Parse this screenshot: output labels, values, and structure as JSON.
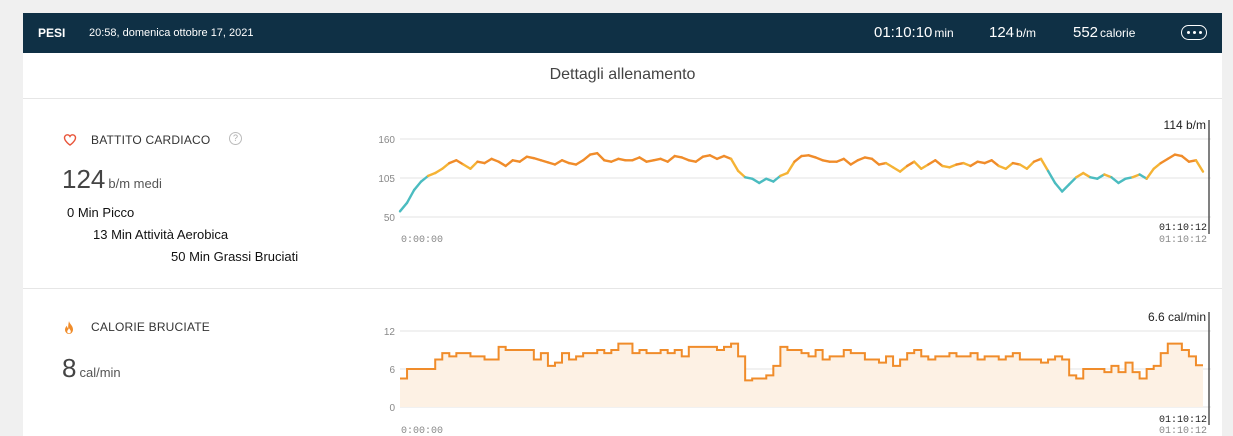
{
  "header": {
    "workout_type": "PESI",
    "datetime": "20:58, domenica ottobre 17, 2021",
    "duration": "01:10:10",
    "duration_unit": "min",
    "heart_rate": "124",
    "heart_rate_unit": "b/m",
    "calories": "552",
    "calories_unit": "calorie"
  },
  "section_title": "Dettagli allenamento",
  "heart": {
    "label": "BATTITO CARDIACO",
    "help": "?",
    "value": "124",
    "unit": "b/m medi",
    "zones": [
      "0 Min Picco",
      "13 Min Attività Aerobica",
      "50 Min Grassi Bruciati"
    ]
  },
  "calories_section": {
    "label": "CALORIE BRUCIATE",
    "value": "8",
    "unit": "cal/min"
  },
  "colors": {
    "topbar": "#0f3045",
    "orange": "#f08c2a",
    "yellow": "#f5b335",
    "teal": "#4bbcc0",
    "fill": "#fdf1e4"
  },
  "icons": [
    "heart-icon",
    "help-icon",
    "fire-icon",
    "more-icon"
  ],
  "chart_data": [
    {
      "type": "line",
      "title": "",
      "x_start": "0:00:00",
      "x_end": "01:10:12",
      "ylim": [
        50,
        160
      ],
      "yticks": [
        50,
        105,
        160
      ],
      "cursor_time": "01:10:12",
      "cursor_value": "114 b/m",
      "grid": true,
      "points": [
        [
          0,
          58
        ],
        [
          1,
          70
        ],
        [
          2,
          88
        ],
        [
          3,
          100
        ],
        [
          4,
          108
        ],
        [
          5,
          112
        ],
        [
          6,
          118
        ],
        [
          7,
          126
        ],
        [
          8,
          130
        ],
        [
          9,
          124
        ],
        [
          10,
          118
        ],
        [
          11,
          128
        ],
        [
          12,
          126
        ],
        [
          13,
          132
        ],
        [
          14,
          128
        ],
        [
          15,
          122
        ],
        [
          16,
          130
        ],
        [
          17,
          128
        ],
        [
          18,
          135
        ],
        [
          19,
          133
        ],
        [
          20,
          130
        ],
        [
          21,
          127
        ],
        [
          22,
          124
        ],
        [
          23,
          130
        ],
        [
          24,
          126
        ],
        [
          25,
          124
        ],
        [
          26,
          130
        ],
        [
          27,
          138
        ],
        [
          28,
          140
        ],
        [
          29,
          130
        ],
        [
          30,
          128
        ],
        [
          31,
          132
        ],
        [
          32,
          130
        ],
        [
          33,
          130
        ],
        [
          34,
          134
        ],
        [
          35,
          128
        ],
        [
          36,
          130
        ],
        [
          37,
          132
        ],
        [
          38,
          128
        ],
        [
          39,
          136
        ],
        [
          40,
          134
        ],
        [
          41,
          130
        ],
        [
          42,
          128
        ],
        [
          43,
          135
        ],
        [
          44,
          137
        ],
        [
          45,
          132
        ],
        [
          46,
          136
        ],
        [
          47,
          132
        ],
        [
          48,
          115
        ],
        [
          49,
          106
        ],
        [
          50,
          104
        ],
        [
          51,
          98
        ],
        [
          52,
          104
        ],
        [
          53,
          100
        ],
        [
          54,
          108
        ],
        [
          55,
          112
        ],
        [
          56,
          128
        ],
        [
          57,
          136
        ],
        [
          58,
          137
        ],
        [
          59,
          134
        ],
        [
          60,
          130
        ],
        [
          61,
          128
        ],
        [
          62,
          128
        ],
        [
          63,
          132
        ],
        [
          64,
          124
        ],
        [
          65,
          130
        ],
        [
          66,
          134
        ],
        [
          67,
          132
        ],
        [
          68,
          124
        ],
        [
          69,
          126
        ],
        [
          70,
          120
        ],
        [
          71,
          114
        ],
        [
          72,
          122
        ],
        [
          73,
          128
        ],
        [
          74,
          118
        ],
        [
          75,
          124
        ],
        [
          76,
          130
        ],
        [
          77,
          122
        ],
        [
          78,
          120
        ],
        [
          79,
          124
        ],
        [
          80,
          126
        ],
        [
          81,
          122
        ],
        [
          82,
          128
        ],
        [
          83,
          126
        ],
        [
          84,
          130
        ],
        [
          85,
          122
        ],
        [
          86,
          118
        ],
        [
          87,
          126
        ],
        [
          88,
          124
        ],
        [
          89,
          118
        ],
        [
          90,
          128
        ],
        [
          91,
          132
        ],
        [
          92,
          115
        ],
        [
          93,
          98
        ],
        [
          94,
          86
        ],
        [
          95,
          96
        ],
        [
          96,
          106
        ],
        [
          97,
          112
        ],
        [
          98,
          106
        ],
        [
          99,
          104
        ],
        [
          100,
          110
        ],
        [
          101,
          106
        ],
        [
          102,
          98
        ],
        [
          103,
          104
        ],
        [
          104,
          106
        ],
        [
          105,
          110
        ],
        [
          106,
          104
        ],
        [
          107,
          118
        ],
        [
          108,
          126
        ],
        [
          109,
          132
        ],
        [
          110,
          138
        ],
        [
          111,
          136
        ],
        [
          112,
          128
        ],
        [
          113,
          130
        ],
        [
          114,
          114
        ]
      ]
    },
    {
      "type": "area",
      "title": "",
      "x_start": "0:00:00",
      "x_end": "01:10:12",
      "ylim": [
        0,
        12
      ],
      "yticks": [
        0,
        6,
        12
      ],
      "cursor_time": "01:10:12",
      "cursor_value": "6.6 cal/min",
      "grid": true,
      "values": [
        4.5,
        6,
        6,
        6,
        6,
        7.5,
        8.5,
        8,
        8.5,
        8.5,
        8,
        8,
        7.5,
        7.5,
        9.5,
        9,
        9,
        9,
        9,
        7.5,
        8.5,
        6.5,
        7,
        8.5,
        7.5,
        8,
        8.5,
        8.5,
        9,
        8.5,
        9,
        10,
        10,
        8.5,
        9,
        8.5,
        8.5,
        9,
        8.5,
        9,
        8,
        9.5,
        9.5,
        9.5,
        9.5,
        9,
        9.5,
        10,
        8,
        4.2,
        4.5,
        4.5,
        5,
        6.5,
        9.5,
        9,
        9,
        8.5,
        8,
        9,
        7.5,
        8,
        8,
        9,
        8.5,
        8.5,
        7.5,
        7.5,
        7,
        8,
        6.5,
        7.5,
        8.5,
        9,
        8,
        7.5,
        8,
        8,
        8.5,
        8,
        8,
        8.5,
        7.5,
        8,
        8,
        7.5,
        8,
        8.5,
        7.5,
        7.5,
        7.5,
        7,
        7.5,
        8,
        7.5,
        5,
        4.5,
        6,
        6,
        6,
        5.5,
        6.5,
        5.5,
        7,
        5.5,
        4.5,
        6,
        6.5,
        8.5,
        10,
        10,
        9,
        8,
        6.6
      ]
    }
  ]
}
